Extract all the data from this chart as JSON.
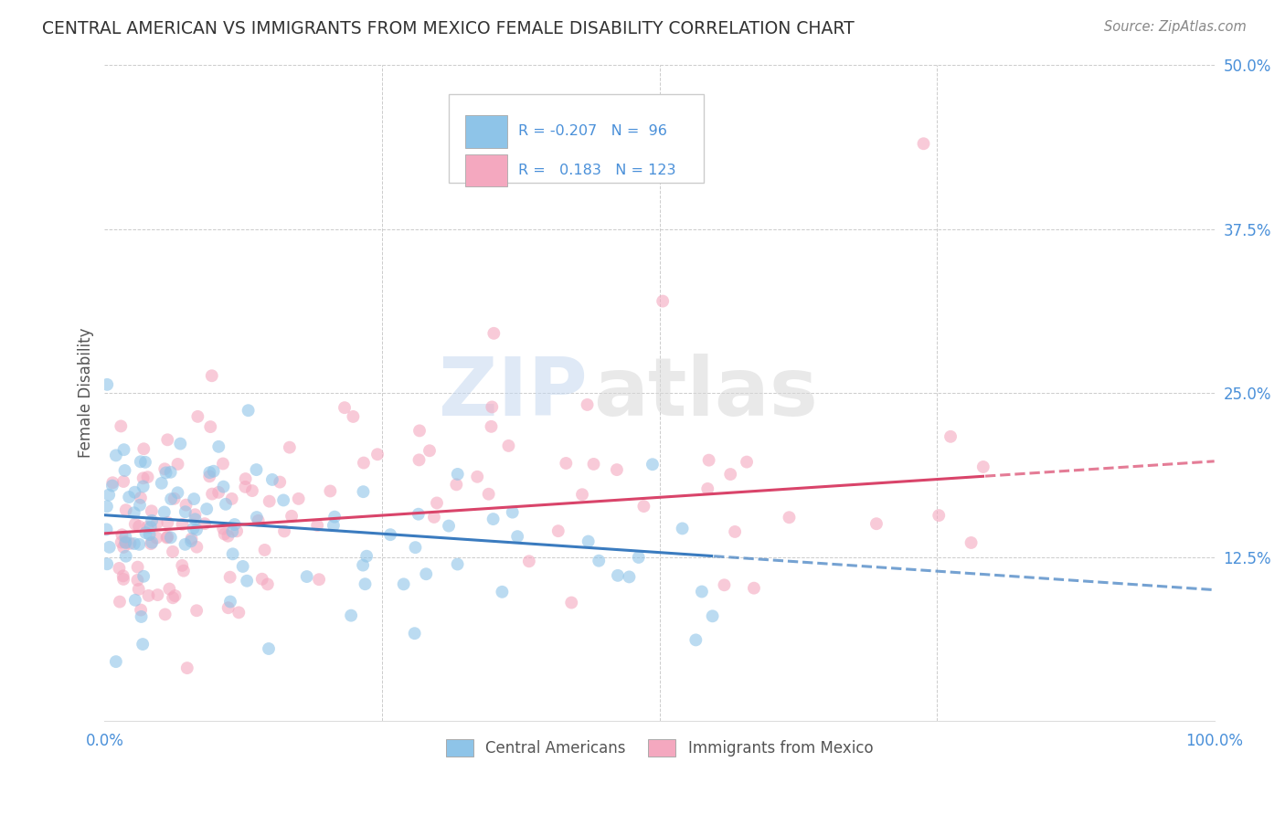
{
  "title": "CENTRAL AMERICAN VS IMMIGRANTS FROM MEXICO FEMALE DISABILITY CORRELATION CHART",
  "source": "Source: ZipAtlas.com",
  "ylabel": "Female Disability",
  "xlim": [
    0,
    1.0
  ],
  "ylim": [
    0,
    0.5
  ],
  "yticks": [
    0.125,
    0.25,
    0.375,
    0.5
  ],
  "ytick_labels": [
    "12.5%",
    "25.0%",
    "37.5%",
    "50.0%"
  ],
  "blue_color": "#8ec4e8",
  "pink_color": "#f4a8bf",
  "blue_line_color": "#3a7bbf",
  "pink_line_color": "#d9446a",
  "blue_R": -0.207,
  "blue_N": 96,
  "pink_R": 0.183,
  "pink_N": 123,
  "legend_label_blue": "Central Americans",
  "legend_label_pink": "Immigrants from Mexico",
  "watermark_zip": "ZIP",
  "watermark_atlas": "atlas",
  "background_color": "#ffffff",
  "grid_color": "#cccccc",
  "title_color": "#333333",
  "axis_label_color": "#4a90d9",
  "title_fontsize": 13.5,
  "source_fontsize": 10.5
}
